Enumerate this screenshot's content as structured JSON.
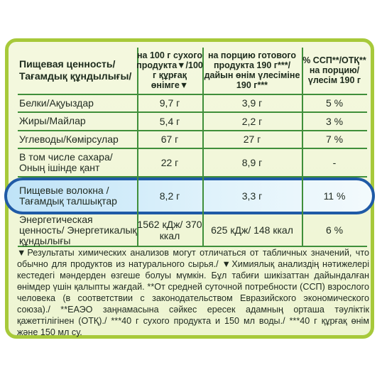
{
  "header": {
    "col0": "Пищевая ценность/ Тағамдық құндылығы/",
    "col1": "на 100 г сухого продукта▼/100 г құрғақ өнімге▼",
    "col2": "на порцию готового продукта 190 г***/дайын өнім үлесіміне 190 г***",
    "col3": "% ССП**/ОТҚ** на порцию/ үлесім 190 г"
  },
  "rows": [
    {
      "name": "Белки/Ақуыздар",
      "per100": "9,7 г",
      "portion": "3,9 г",
      "pct": "5 %"
    },
    {
      "name": "Жиры/Майлар",
      "per100": "5,4 г",
      "portion": "2,2 г",
      "pct": "3 %"
    },
    {
      "name": "Углеводы/Көмірсулар",
      "per100": "67 г",
      "portion": "27 г",
      "pct": "7 %"
    },
    {
      "name": "В том числе сахара/ Оның ішінде қант",
      "per100": "22 г",
      "portion": "8,9 г",
      "pct": "-"
    },
    {
      "name": "Пищевые волокна / Тағамдық талшықтар",
      "per100": "8,2  г",
      "portion": "3,3 г",
      "pct": "11 %"
    },
    {
      "name": "Энергетическая ценность/ Энергетикалық құндылығы",
      "per100": "1562 кДж/ 370 ккал",
      "portion": "625 кДж/ 148 ккал",
      "pct": "6 %"
    }
  ],
  "footnote": "▼Результаты химических анализов могут отличаться от табличных значений, что обычно для продуктов из натурального сырья./ ▼Химиялық анализдің нәтижелері кестедегі мәндерден өзгеше болуы мүмкін. Бұл табиғи шикізаттан дайындалған өнімдер үшін қалыпты жағдай. **От средней суточной потребности (ССП) взрослого человека (в соответствии с законодательством Евразийского экономического союза)./ **ЕАЭО заңнамасына сәйкес ересек адамның орташа тәуліктік қажеттілігінен (ОТҚ)./ ***40 г сухого продукта и 150 мл воды./ ***40 г құрғақ өнім және 150 мл су.",
  "colors": {
    "border_green": "#a7c93a",
    "line_green": "#3f8f3a",
    "highlight_blue": "#1f5aa6",
    "highlight_fill": "#bfe3f7"
  }
}
